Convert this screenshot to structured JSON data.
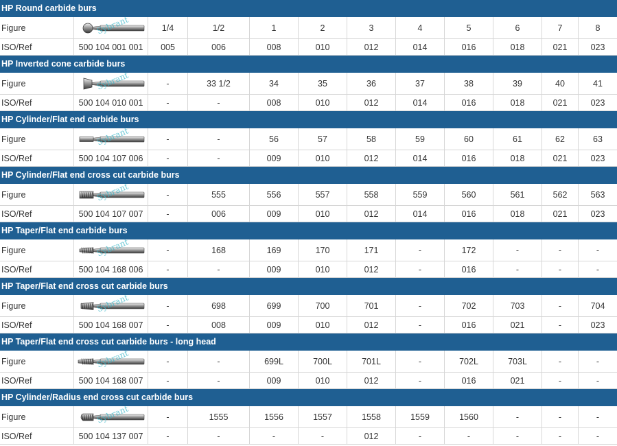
{
  "row_labels": {
    "figure": "Figure",
    "iso": "ISO/Ref"
  },
  "colors": {
    "header_bg": "#1f5f92",
    "header_text": "#ffffff",
    "grid": "#d6d6d6",
    "watermark": "#3cb7c9"
  },
  "watermark_text": "Sybrant",
  "sections": [
    {
      "title": "HP Round carbide burs",
      "head_icon": "round-bur-icon",
      "ref": "500 104 001 001",
      "figure": [
        "1/4",
        "1/2",
        "1",
        "2",
        "3",
        "4",
        "5",
        "6",
        "7",
        "8"
      ],
      "iso": [
        "005",
        "006",
        "008",
        "010",
        "012",
        "014",
        "016",
        "018",
        "021",
        "023"
      ]
    },
    {
      "title": "HP Inverted cone carbide burs",
      "head_icon": "inverted-cone-bur-icon",
      "ref": "500 104 010 001",
      "figure": [
        "-",
        "33 1/2",
        "34",
        "35",
        "36",
        "37",
        "38",
        "39",
        "40",
        "41"
      ],
      "iso": [
        "-",
        "-",
        "008",
        "010",
        "012",
        "014",
        "016",
        "018",
        "021",
        "023"
      ]
    },
    {
      "title": "HP Cylinder/Flat end carbide burs",
      "head_icon": "cylinder-bur-icon",
      "ref": "500 104 107 006",
      "figure": [
        "-",
        "-",
        "56",
        "57",
        "58",
        "59",
        "60",
        "61",
        "62",
        "63"
      ],
      "iso": [
        "-",
        "-",
        "009",
        "010",
        "012",
        "014",
        "016",
        "018",
        "021",
        "023"
      ]
    },
    {
      "title": "HP Cylinder/Flat end cross cut carbide burs",
      "head_icon": "cylinder-crosscut-bur-icon",
      "ref": "500 104 107 007",
      "figure": [
        "-",
        "555",
        "556",
        "557",
        "558",
        "559",
        "560",
        "561",
        "562",
        "563"
      ],
      "iso": [
        "-",
        "006",
        "009",
        "010",
        "012",
        "014",
        "016",
        "018",
        "021",
        "023"
      ]
    },
    {
      "title": "HP Taper/Flat end carbide burs",
      "head_icon": "taper-bur-icon",
      "ref": "500 104 168 006",
      "figure": [
        "-",
        "168",
        "169",
        "170",
        "171",
        "-",
        "172",
        "-",
        "-",
        "-"
      ],
      "iso": [
        "-",
        "-",
        "009",
        "010",
        "012",
        "-",
        "016",
        "-",
        "-",
        "-"
      ]
    },
    {
      "title": "HP Taper/Flat end cross cut carbide burs",
      "head_icon": "taper-crosscut-bur-icon",
      "ref": "500 104 168 007",
      "figure": [
        "-",
        "698",
        "699",
        "700",
        "701",
        "-",
        "702",
        "703",
        "-",
        "704"
      ],
      "iso": [
        "-",
        "008",
        "009",
        "010",
        "012",
        "-",
        "016",
        "021",
        "-",
        "023"
      ]
    },
    {
      "title": "HP Taper/Flat end cross cut carbide burs - long head",
      "head_icon": "taper-longhead-bur-icon",
      "ref": "500 104 168 007",
      "figure": [
        "-",
        "-",
        "699L",
        "700L",
        "701L",
        "-",
        "702L",
        "703L",
        "-",
        "-"
      ],
      "iso": [
        "-",
        "-",
        "009",
        "010",
        "012",
        "-",
        "016",
        "021",
        "-",
        "-"
      ]
    },
    {
      "title": "HP Cylinder/Radius end cross cut carbide burs",
      "head_icon": "radius-end-bur-icon",
      "ref": "500 104 137 007",
      "figure": [
        "-",
        "1555",
        "1556",
        "1557",
        "1558",
        "1559",
        "1560",
        "-",
        "-",
        "-"
      ],
      "iso": [
        "-",
        "-",
        "-",
        "-",
        "012",
        "-",
        "-",
        "-",
        "-",
        "-"
      ]
    }
  ]
}
